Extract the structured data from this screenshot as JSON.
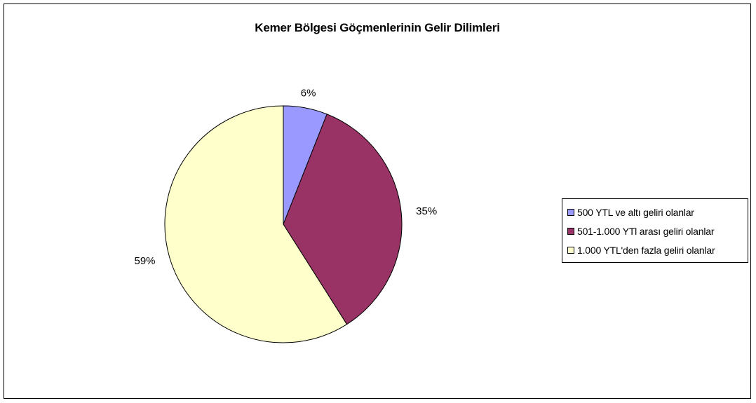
{
  "chart_data": {
    "type": "pie",
    "title": "Kemer Bölgesi Göçmenlerinin Gelir Dilimleri",
    "categories": [
      "500 YTL ve altı geliri olanlar",
      "501-1.000 YTl arası geliri olanlar",
      "1.000 YTL'den fazla geliri olanlar"
    ],
    "values": [
      6,
      35,
      59
    ],
    "data_labels": [
      "6%",
      "35%",
      "59%"
    ],
    "colors": [
      "#9999FF",
      "#993366",
      "#FFFFCC"
    ],
    "legend_position": "right",
    "start_angle": "top, clockwise"
  }
}
